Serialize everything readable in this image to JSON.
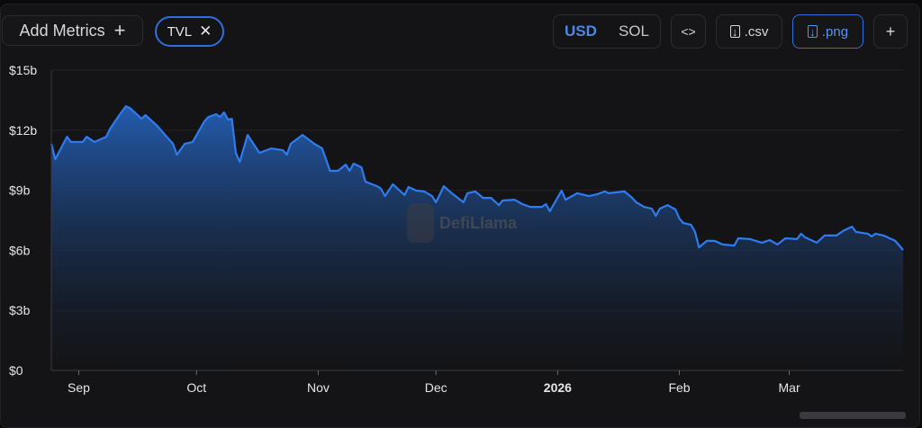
{
  "toolbar": {
    "add_metrics_label": "Add Metrics",
    "metric_chip": "TVL",
    "currency_options": [
      "USD",
      "SOL"
    ],
    "currency_selected": "USD",
    "embed_icon": "code-brackets-icon",
    "csv_label": ".csv",
    "png_label": ".png",
    "add_icon": "plus-icon"
  },
  "watermark": "DefiLlama",
  "colors": {
    "line": "#2f7bf0",
    "accent": "#2f6fdb",
    "background": "#141416"
  },
  "chart_data": {
    "type": "area",
    "title": "",
    "xlabel": "",
    "ylabel": "",
    "xlim": [
      "2025-08-25",
      "2026-03-30"
    ],
    "ylim": [
      0,
      15
    ],
    "y_ticks": [
      {
        "value": 0,
        "label": "$0"
      },
      {
        "value": 3,
        "label": "$3b"
      },
      {
        "value": 6,
        "label": "$6b"
      },
      {
        "value": 9,
        "label": "$9b"
      },
      {
        "value": 12,
        "label": "$12b"
      },
      {
        "value": 15,
        "label": "$15b"
      }
    ],
    "x_ticks": [
      {
        "date": "2025-09-01",
        "label": "Sep",
        "bold": false
      },
      {
        "date": "2025-10-01",
        "label": "Oct",
        "bold": false
      },
      {
        "date": "2025-11-01",
        "label": "Nov",
        "bold": false
      },
      {
        "date": "2025-12-01",
        "label": "Dec",
        "bold": false
      },
      {
        "date": "2026-01-01",
        "label": "2026",
        "bold": true
      },
      {
        "date": "2026-02-01",
        "label": "Feb",
        "bold": false
      },
      {
        "date": "2026-03-01",
        "label": "Mar",
        "bold": false
      }
    ],
    "grid": true,
    "unit": "USD billions",
    "series": [
      {
        "x": [
          "2025-08-25",
          "2025-08-26",
          "2025-08-29",
          "2025-08-30",
          "2025-09-02",
          "2025-09-03",
          "2025-09-05",
          "2025-09-08",
          "2025-09-09",
          "2025-09-11",
          "2025-09-13",
          "2025-09-14",
          "2025-09-17",
          "2025-09-18",
          "2025-09-21",
          "2025-09-23",
          "2025-09-25",
          "2025-09-26",
          "2025-09-28",
          "2025-09-30",
          "2025-10-03",
          "2025-10-04",
          "2025-10-06",
          "2025-10-07",
          "2025-10-08",
          "2025-10-09",
          "2025-10-10",
          "2025-10-11",
          "2025-10-12",
          "2025-10-14",
          "2025-10-17",
          "2025-10-20",
          "2025-10-23",
          "2025-10-24",
          "2025-10-25",
          "2025-10-28",
          "2025-10-31",
          "2025-11-02",
          "2025-11-04",
          "2025-11-06",
          "2025-11-08",
          "2025-11-09",
          "2025-11-10",
          "2025-11-12",
          "2025-11-13",
          "2025-11-16",
          "2025-11-17",
          "2025-11-18",
          "2025-11-20",
          "2025-11-23",
          "2025-11-24",
          "2025-11-26",
          "2025-11-28",
          "2025-11-30",
          "2025-12-01",
          "2025-12-03",
          "2025-12-05",
          "2025-12-08",
          "2025-12-09",
          "2025-12-11",
          "2025-12-13",
          "2025-12-15",
          "2025-12-17",
          "2025-12-18",
          "2025-12-21",
          "2025-12-23",
          "2025-12-25",
          "2025-12-28",
          "2025-12-29",
          "2025-12-30",
          "2026-01-02",
          "2026-01-03",
          "2026-01-06",
          "2026-01-09",
          "2026-01-11",
          "2026-01-13",
          "2026-01-14",
          "2026-01-18",
          "2026-01-20",
          "2026-01-21",
          "2026-01-23",
          "2026-01-25",
          "2026-01-26",
          "2026-01-27",
          "2026-01-29",
          "2026-01-31",
          "2026-02-01",
          "2026-02-02",
          "2026-02-04",
          "2026-02-05",
          "2026-02-06",
          "2026-02-08",
          "2026-02-10",
          "2026-02-12",
          "2026-02-15",
          "2026-02-16",
          "2026-02-19",
          "2026-02-22",
          "2026-02-24",
          "2026-02-26",
          "2026-02-28",
          "2026-03-03",
          "2026-03-04",
          "2026-03-05",
          "2026-03-08",
          "2026-03-10",
          "2026-03-13",
          "2026-03-15",
          "2026-03-17",
          "2026-03-18",
          "2026-03-21",
          "2026-03-22",
          "2026-03-23",
          "2026-03-25",
          "2026-03-28",
          "2026-03-30"
        ],
        "y": [
          11.32,
          10.55,
          11.67,
          11.41,
          11.41,
          11.67,
          11.41,
          11.67,
          12.08,
          12.66,
          13.2,
          13.11,
          12.57,
          12.75,
          12.21,
          11.76,
          11.32,
          10.78,
          11.32,
          11.41,
          12.44,
          12.66,
          12.8,
          12.66,
          12.89,
          12.53,
          12.57,
          10.87,
          10.42,
          11.76,
          10.87,
          11.09,
          11.0,
          10.78,
          11.32,
          11.76,
          11.32,
          11.09,
          9.97,
          9.97,
          10.28,
          9.97,
          10.33,
          10.15,
          9.43,
          9.2,
          9.07,
          8.71,
          9.3,
          8.76,
          9.16,
          8.98,
          8.94,
          8.71,
          8.4,
          9.2,
          8.85,
          8.4,
          8.85,
          8.94,
          8.62,
          8.62,
          8.26,
          8.49,
          8.53,
          8.31,
          8.17,
          8.17,
          8.31,
          7.95,
          8.98,
          8.53,
          8.85,
          8.71,
          8.8,
          8.94,
          8.85,
          8.94,
          8.62,
          8.4,
          8.17,
          8.08,
          7.72,
          8.08,
          8.26,
          8.04,
          7.59,
          7.36,
          7.27,
          6.92,
          6.15,
          6.47,
          6.47,
          6.29,
          6.24,
          6.6,
          6.56,
          6.38,
          6.51,
          6.29,
          6.6,
          6.56,
          6.83,
          6.65,
          6.38,
          6.74,
          6.74,
          7.0,
          7.18,
          6.92,
          6.83,
          6.69,
          6.83,
          6.74,
          6.47,
          6.02
        ]
      }
    ]
  }
}
